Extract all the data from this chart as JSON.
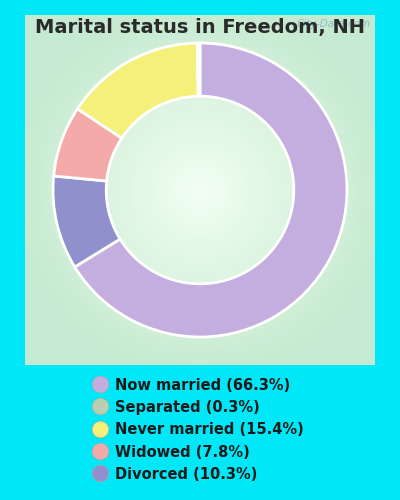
{
  "title": "Marital status in Freedom, NH",
  "background_outer": "#00e8f8",
  "slices": [
    {
      "label": "Now married (66.3%)",
      "value": 66.3,
      "color": "#c4aee0"
    },
    {
      "label": "Separated (0.3%)",
      "value": 0.3,
      "color": "#b8cfb0"
    },
    {
      "label": "Never married (15.4%)",
      "value": 15.4,
      "color": "#f5f07a"
    },
    {
      "label": "Widowed (7.8%)",
      "value": 7.8,
      "color": "#f5aaaa"
    },
    {
      "label": "Divorced (10.3%)",
      "value": 10.3,
      "color": "#9090cc"
    }
  ],
  "legend_colors": [
    "#c4aee0",
    "#b8cfb0",
    "#f5f07a",
    "#f5aaaa",
    "#9090cc"
  ],
  "legend_fontsize": 10.5,
  "title_fontsize": 14,
  "watermark": "City-Data.com"
}
